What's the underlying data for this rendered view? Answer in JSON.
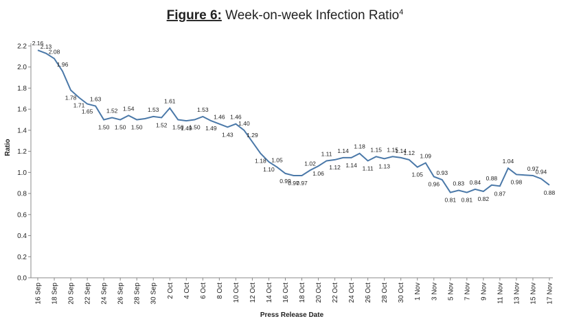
{
  "chart_data": {
    "type": "line",
    "title_label": "Figure 6:",
    "title": "Week-on-week Infection Ratio",
    "title_footnote": "4",
    "ylabel": "Ratio",
    "xlabel": "Press Release Date",
    "categories": [
      "16 Sep",
      null,
      "18 Sep",
      null,
      "20 Sep",
      null,
      "22 Sep",
      null,
      "24 Sep",
      null,
      "26 Sep",
      null,
      "28 Sep",
      null,
      "30 Sep",
      null,
      "2 Oct",
      null,
      "4 Oct",
      null,
      "6 Oct",
      null,
      "8 Oct",
      null,
      "10 Oct",
      null,
      "12 Oct",
      null,
      "14 Oct",
      null,
      "16 Oct",
      null,
      "18 Oct",
      null,
      "20 Oct",
      null,
      "22 Oct",
      null,
      "24 Oct",
      null,
      "26 Oct",
      null,
      "28 Oct",
      null,
      "30 Oct",
      null,
      "1 Nov",
      null,
      "3 Nov",
      null,
      "5 Nov",
      null,
      "7 Nov",
      null,
      "9 Nov",
      null,
      "11 Nov",
      null,
      "13 Nov",
      null,
      "15 Nov",
      null,
      "17 Nov"
    ],
    "series": [
      {
        "name": "Ratio",
        "color": "#4a78a8",
        "values": [
          2.16,
          2.13,
          2.08,
          1.96,
          1.78,
          1.71,
          1.65,
          1.63,
          1.5,
          1.52,
          1.5,
          1.54,
          1.5,
          1.51,
          1.53,
          1.52,
          1.61,
          1.5,
          1.49,
          1.5,
          1.53,
          1.49,
          1.46,
          1.43,
          1.46,
          1.4,
          1.29,
          1.18,
          1.1,
          1.05,
          0.99,
          0.97,
          0.97,
          1.02,
          1.06,
          1.11,
          1.12,
          1.14,
          1.14,
          1.18,
          1.11,
          1.15,
          1.13,
          1.15,
          1.14,
          1.12,
          1.05,
          1.09,
          0.96,
          0.93,
          0.81,
          0.83,
          0.81,
          0.84,
          0.82,
          0.88,
          0.87,
          1.04,
          0.98,
          0.975,
          0.97,
          0.94,
          0.88
        ],
        "value_labels": [
          "2.16",
          "2.13",
          "2.08",
          "1.96",
          "1.78",
          "1.71",
          "1.65",
          "1.63",
          "1.50",
          "1.52",
          "1.50",
          "1.54",
          "1.50",
          null,
          "1.53",
          "1.52",
          "1.61",
          "1.50",
          "1.49",
          "1.50",
          "1.53",
          "1.49",
          "1.46",
          "1.43",
          "1.46",
          "1.40",
          "1.29",
          "1.18",
          "1.10",
          "1.05",
          "0.99",
          "0.97",
          "0.97",
          "1.02",
          "1.06",
          "1.11",
          "1.12",
          "1.14",
          "1.14",
          "1.18",
          "1.11",
          "1.15",
          "1.13",
          "1.15",
          "1.14",
          "1.12",
          "1.05",
          "1.09",
          "0.96",
          "0.93",
          "0.81",
          "0.83",
          "0.81",
          "0.84",
          "0.82",
          "0.88",
          "0.87",
          "1.04",
          "0.98",
          null,
          "0.97",
          "0.94",
          "0.88"
        ]
      }
    ],
    "ylim": [
      0,
      2.2
    ],
    "yticks": [
      {
        "value": 0,
        "label": "0.0"
      },
      0.2,
      0.4,
      0.6,
      0.8,
      {
        "value": 1,
        "label": "1.0"
      },
      1.2,
      1.4,
      1.6,
      1.8,
      {
        "value": 2,
        "label": "2.0"
      },
      2.2
    ],
    "grid": false
  }
}
